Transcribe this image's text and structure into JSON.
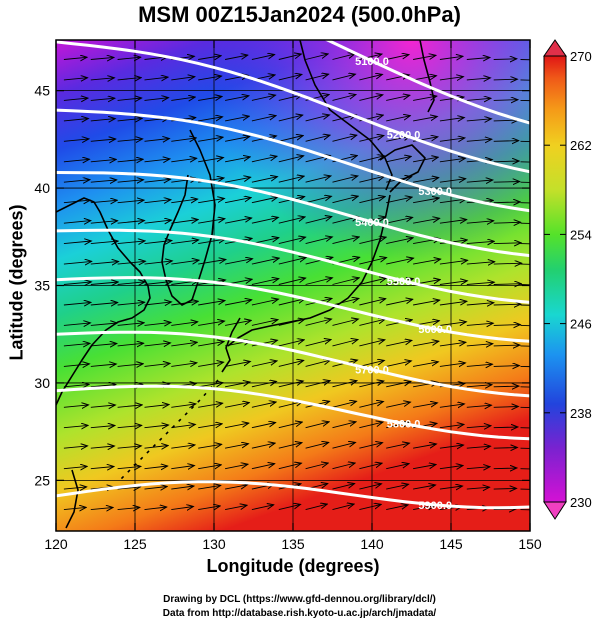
{
  "title": "MSM 00Z15Jan2024 (500.0hPa)",
  "axes": {
    "xlabel": "Longitude (degrees)",
    "ylabel": "Latitude  (degrees)",
    "x_ticks": [
      "120",
      "125",
      "130",
      "135",
      "140",
      "145",
      "150"
    ],
    "y_ticks": [
      "25",
      "30",
      "35",
      "40",
      "45"
    ],
    "xlim": [
      120,
      150
    ],
    "ylim": [
      22.4,
      47.6
    ]
  },
  "colorbar": {
    "tick_labels": [
      "270",
      "262",
      "254",
      "246",
      "238",
      "230"
    ],
    "range": [
      230,
      270
    ],
    "unit_hint": "K",
    "colors": [
      "#d411d4",
      "#7a22d0",
      "#2244dd",
      "#1c93f0",
      "#19d7d0",
      "#22d070",
      "#55e22a",
      "#c4e02a",
      "#f0d020",
      "#f59a18",
      "#f05a18",
      "#e01515"
    ]
  },
  "contours": [
    {
      "label": "5100.0",
      "lat120": 52.0,
      "lat150": 44.0
    },
    {
      "label": "5200.0",
      "lat120": 47.5,
      "lat150": 41.5
    },
    {
      "label": "5300.0",
      "lat120": 44.0,
      "lat150": 39.5
    },
    {
      "label": "5400.0",
      "lat120": 40.8,
      "lat150": 37.2
    },
    {
      "label": "5500.0",
      "lat120": 37.8,
      "lat150": 34.8
    },
    {
      "label": "5600.0",
      "lat120": 35.3,
      "lat150": 32.8
    },
    {
      "label": "5700.0",
      "lat120": 32.5,
      "lat150": 30.0
    },
    {
      "label": "5800.0",
      "lat120": 29.6,
      "lat150": 27.8
    },
    {
      "label": "5900.0",
      "lat120": 24.2,
      "lat150": 24.3
    }
  ],
  "colors": {
    "contour": "#ffffff",
    "arrows": "#000000",
    "coast": "#000000",
    "grid": "#000000"
  },
  "credits": {
    "line1": "Drawing by DCL (https://www.gfd-dennou.org/library/dcl/)",
    "line2": "Data from http://database.rish.kyoto-u.ac.jp/arch/jmadata/"
  }
}
